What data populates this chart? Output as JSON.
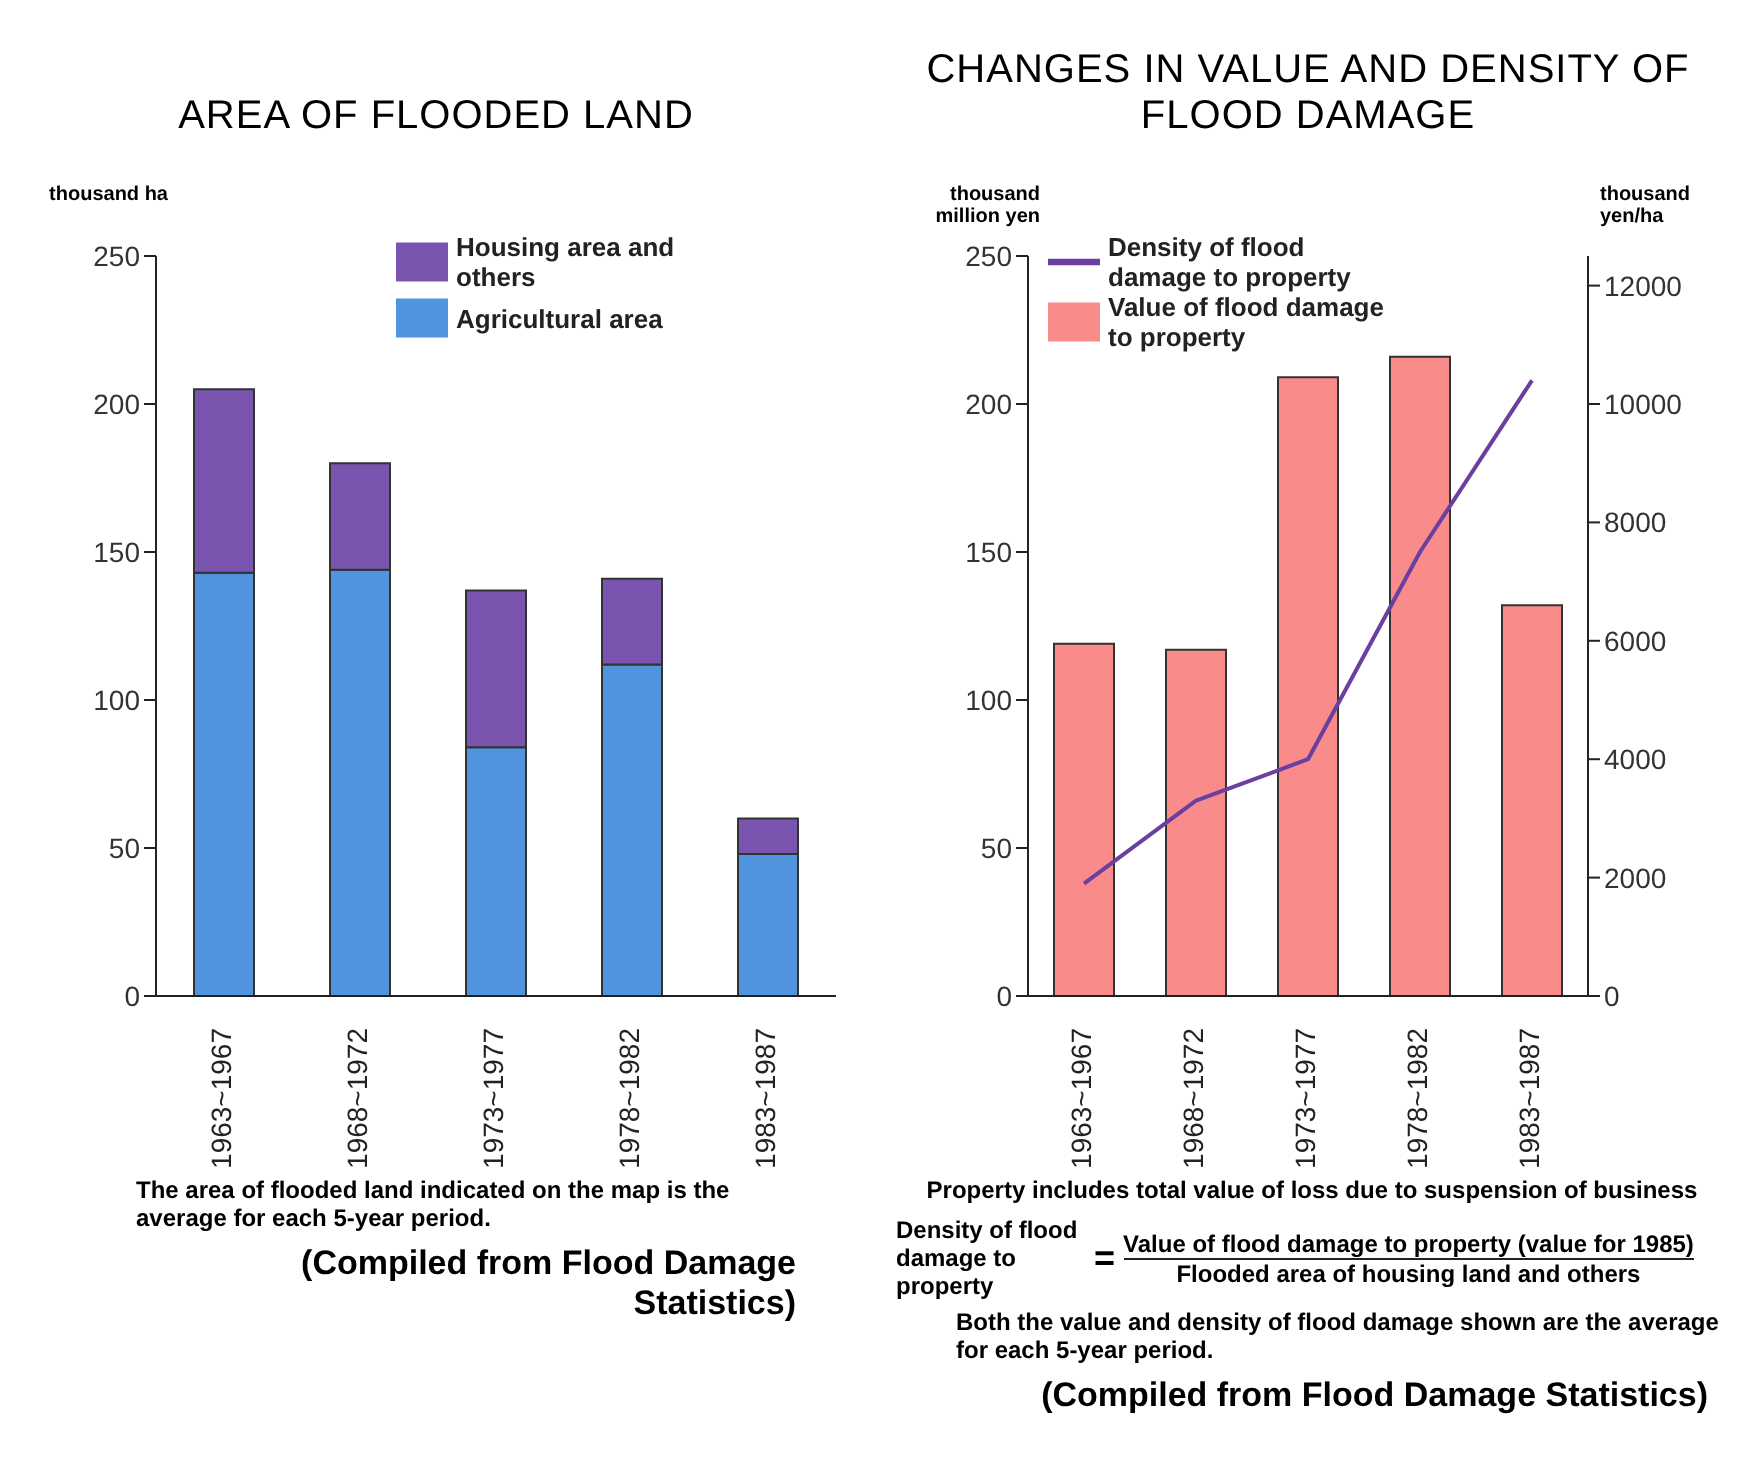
{
  "chart_data": [
    {
      "type": "bar",
      "title": "AREA OF FLOODED LAND",
      "ylabel": "thousand ha",
      "categories": [
        "1963~1967",
        "1968~1972",
        "1973~1977",
        "1978~1982",
        "1983~1987"
      ],
      "stacked": true,
      "series": [
        {
          "name": "Agricultural area",
          "color": "#4f94dc",
          "values": [
            143,
            144,
            84,
            112,
            48
          ]
        },
        {
          "name": "Housing area and others",
          "color": "#7a55b0",
          "values": [
            62,
            36,
            53,
            29,
            12
          ]
        }
      ],
      "ylim": [
        0,
        250
      ],
      "yticks": [
        0,
        50,
        100,
        150,
        200,
        250
      ],
      "legend": "top right",
      "annotations": [
        "The area of flooded land indicated on the map is the average for each 5-year period.",
        "(Compiled from Flood Damage Statistics)"
      ]
    },
    {
      "type": "bar",
      "title": "CHANGES IN VALUE AND DENSITY OF FLOOD DAMAGE",
      "ylabel": "thousand million yen",
      "y2label": "thousand yen/ha",
      "categories": [
        "1963~1967",
        "1968~1972",
        "1973~1977",
        "1978~1982",
        "1983~1987"
      ],
      "series": [
        {
          "name": "Density of flood damage to property",
          "type": "line",
          "axis": "y2",
          "color": "#6a3fa0",
          "values": [
            1900,
            3300,
            4000,
            7500,
            10400
          ]
        },
        {
          "name": "Value of flood damage to property",
          "color": "#f98b8b",
          "values": [
            119,
            117,
            209,
            216,
            132
          ]
        }
      ],
      "ylim": [
        0,
        250
      ],
      "yticks": [
        0,
        50,
        100,
        150,
        200,
        250
      ],
      "y2lim": [
        0,
        12500
      ],
      "y2ticks": [
        0,
        2000,
        4000,
        6000,
        8000,
        10000,
        12000
      ],
      "legend": "top left",
      "annotations": [
        "Property includes total value of loss due to suspension of business",
        "Density of flood damage to property",
        "=",
        "Value of flood damage to property (value for 1985)",
        "Flooded area of housing land and others",
        "Both the value and density of flood damage shown are the average for each 5-year period.",
        "(Compiled from Flood Damage Statistics)"
      ]
    }
  ]
}
